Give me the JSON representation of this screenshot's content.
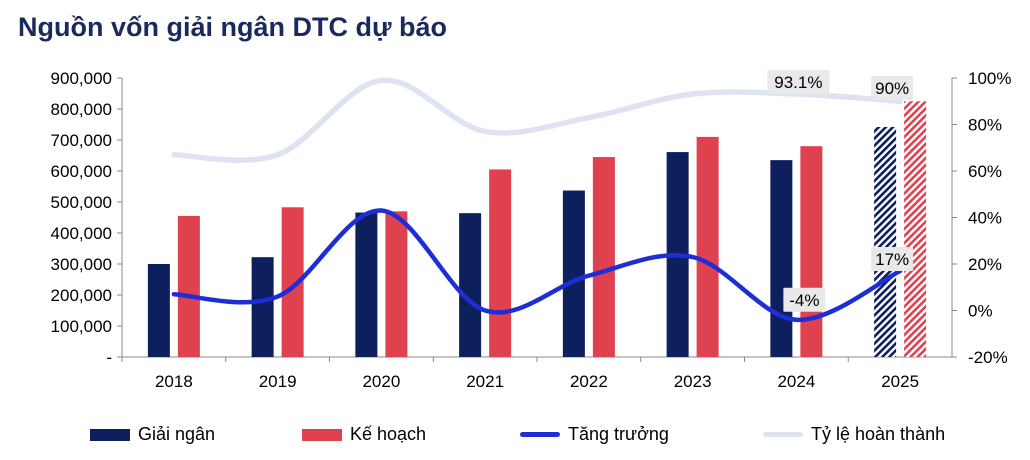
{
  "title": "Nguồn vốn giải ngân DTC dự báo",
  "chart_data": {
    "type": "bar",
    "categories": [
      "2018",
      "2019",
      "2020",
      "2021",
      "2022",
      "2023",
      "2024",
      "2025"
    ],
    "series": [
      {
        "name": "Giải ngân",
        "kind": "bar",
        "axis": "left",
        "color": "#0d1f5c",
        "values": [
          300000,
          322000,
          466000,
          464000,
          537000,
          661000,
          635000,
          742000
        ]
      },
      {
        "name": "Kế hoạch",
        "kind": "bar",
        "axis": "left",
        "color": "#e0414f",
        "values": [
          455000,
          483000,
          470000,
          605000,
          645000,
          710000,
          680000,
          825000
        ]
      },
      {
        "name": "Tăng trưởng",
        "kind": "line",
        "axis": "right",
        "color": "#1e2ed6",
        "values": [
          7,
          6,
          43,
          0,
          15,
          23,
          -4,
          17
        ]
      },
      {
        "name": "Tỷ lệ hoàn thành",
        "kind": "line",
        "axis": "right",
        "color": "#dde3f3",
        "values": [
          67,
          67,
          99,
          77,
          83,
          93.1,
          93.1,
          90
        ]
      }
    ],
    "forecast_category": "2025",
    "left_axis": {
      "min": 0,
      "max": 900000,
      "ticks": [
        {
          "value": 0,
          "label": "-"
        },
        {
          "value": 100000,
          "label": "100,000"
        },
        {
          "value": 200000,
          "label": "200,000"
        },
        {
          "value": 300000,
          "label": "300,000"
        },
        {
          "value": 400000,
          "label": "400,000"
        },
        {
          "value": 500000,
          "label": "500,000"
        },
        {
          "value": 600000,
          "label": "600,000"
        },
        {
          "value": 700000,
          "label": "700,000"
        },
        {
          "value": 800000,
          "label": "800,000"
        },
        {
          "value": 900000,
          "label": "900,000"
        }
      ]
    },
    "right_axis": {
      "min": -20,
      "max": 100,
      "ticks": [
        {
          "value": -20,
          "label": "-20%"
        },
        {
          "value": 0,
          "label": "0%"
        },
        {
          "value": 20,
          "label": "20%"
        },
        {
          "value": 40,
          "label": "40%"
        },
        {
          "value": 60,
          "label": "60%"
        },
        {
          "value": 80,
          "label": "80%"
        },
        {
          "value": 100,
          "label": "100%"
        }
      ]
    },
    "annotations": [
      {
        "text": "93.1%",
        "series": "Tỷ lệ hoàn thành",
        "category": "2024"
      },
      {
        "text": "90%",
        "series": "Tỷ lệ hoàn thành",
        "category": "2025"
      },
      {
        "text": "17%",
        "series": "Tăng trưởng",
        "category": "2025"
      },
      {
        "text": "-4%",
        "series": "Tăng trưởng",
        "category": "2024"
      }
    ],
    "legend": {
      "position": "bottom",
      "items": [
        "Giải ngân",
        "Kế hoạch",
        "Tăng trưởng",
        "Tỷ lệ hoàn thành"
      ]
    },
    "grid": false
  }
}
